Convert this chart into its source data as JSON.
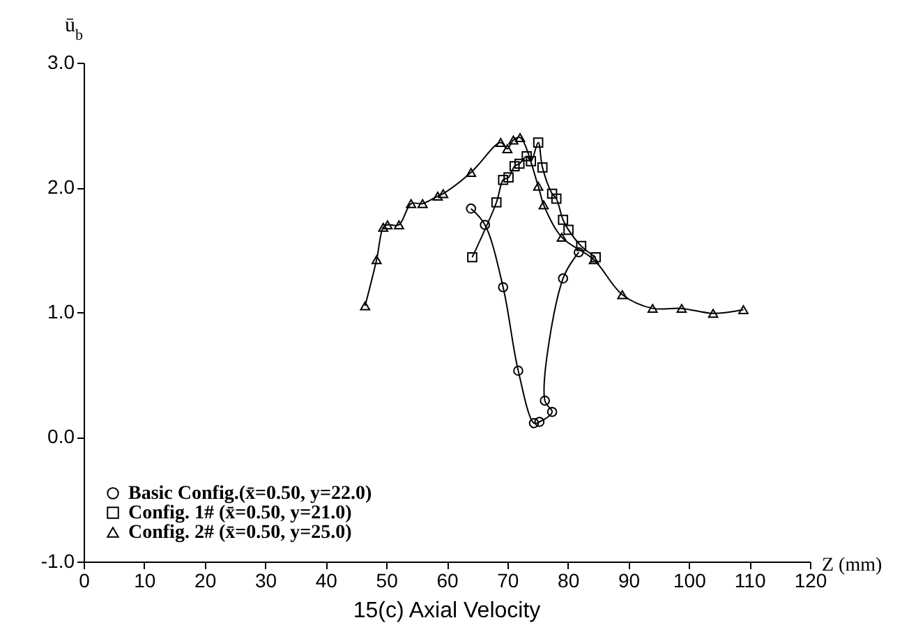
{
  "chart_data": {
    "type": "line",
    "title": "15(c) Axial Velocity",
    "xlabel": "Z (mm)",
    "ylabel": "ū$_{b}$",
    "xlim": [
      0,
      120
    ],
    "xticks": [
      0,
      10,
      20,
      30,
      40,
      50,
      60,
      70,
      80,
      90,
      100,
      110,
      120
    ],
    "ylim": [
      -1,
      3
    ],
    "yticks": [
      {
        "value": -1,
        "label": "-1.0"
      },
      {
        "value": 0,
        "label": "0.0"
      },
      {
        "value": 1,
        "label": "1.0"
      },
      {
        "value": 2,
        "label": "2.0"
      },
      {
        "value": 3,
        "label": "3.0"
      }
    ],
    "grid": false,
    "legend": "bottom left",
    "line_style": "solid",
    "series": [
      {
        "name": "Basic  Config.(x̄=0.50,  y=22.0)",
        "color": "#000000",
        "marker": "circle",
        "x": [
          64,
          66.3,
          69.3,
          71.8,
          74.4,
          75.3,
          77.4,
          76.2,
          79.2,
          81.8
        ],
        "values": [
          1.83,
          1.7,
          1.2,
          0.53,
          0.11,
          0.12,
          0.2,
          0.29,
          1.27,
          1.48
        ]
      },
      {
        "name": "Config.  1# (x̄=0.50,  y=21.0)",
        "color": "#000000",
        "marker": "square",
        "x": [
          64.2,
          68.2,
          69.3,
          70.2,
          71.2,
          72,
          73.2,
          73.9,
          75.1,
          75.8,
          77.4,
          78.1,
          79.2,
          80.1,
          82.2,
          84.6
        ],
        "values": [
          1.44,
          1.88,
          2.06,
          2.08,
          2.17,
          2.19,
          2.25,
          2.21,
          2.36,
          2.16,
          1.95,
          1.91,
          1.74,
          1.66,
          1.53,
          1.44
        ]
      },
      {
        "name": "Config.  2# (x̄=0.50,  y=25.0)",
        "color": "#000000",
        "marker": "triangle",
        "x": [
          46.5,
          48.4,
          49.5,
          50.2,
          52.1,
          54.1,
          56,
          58.5,
          59.4,
          64,
          68.9,
          70,
          71,
          72.1,
          75.1,
          76,
          79,
          84.3,
          89,
          94,
          98.8,
          104,
          109
        ],
        "values": [
          1.05,
          1.42,
          1.68,
          1.7,
          1.7,
          1.87,
          1.87,
          1.93,
          1.95,
          2.12,
          2.36,
          2.31,
          2.38,
          2.4,
          2.01,
          1.86,
          1.6,
          1.42,
          1.14,
          1.03,
          1.03,
          0.99,
          1.02
        ]
      }
    ]
  }
}
